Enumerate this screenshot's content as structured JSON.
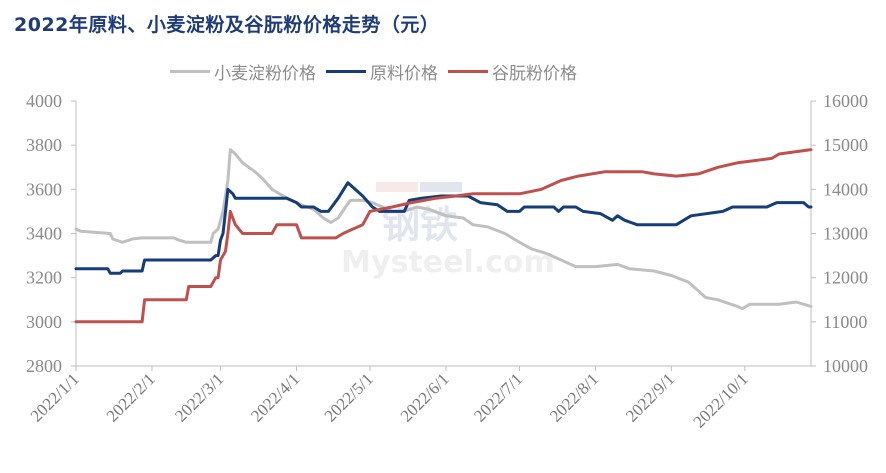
{
  "title": "2022年原料、小麦淀粉及谷朊粉价格走势（元）",
  "legend": [
    {
      "label": "小麦淀粉价格",
      "color": "#c0c0c0"
    },
    {
      "label": "原料价格",
      "color": "#143d7a"
    },
    {
      "label": "谷朊粉价格",
      "color": "#c0504d"
    }
  ],
  "watermark": {
    "top": "钢铁",
    "bottom": "Mysteel.com"
  },
  "chart_data": {
    "type": "line",
    "title": "2022年原料、小麦淀粉及谷朊粉价格走势（元）",
    "xlabel": "",
    "ylabel": "",
    "x_ticks": [
      "2022/1/1",
      "2022/2/1",
      "2022/3/1",
      "2022/4/1",
      "2022/5/1",
      "2022/6/1",
      "2022/7/1",
      "2022/8/1",
      "2022/9/1",
      "2022/10/1"
    ],
    "y_left": {
      "ticks": [
        2800,
        3000,
        3200,
        3400,
        3600,
        3800,
        4000
      ],
      "ylim": [
        2800,
        4000
      ]
    },
    "y_right": {
      "ticks": [
        10000,
        11000,
        12000,
        13000,
        14000,
        15000,
        16000
      ],
      "ylim": [
        10000,
        16000
      ]
    },
    "grid": false,
    "legend_position": "top",
    "series": [
      {
        "name": "小麦淀粉价格",
        "axis": "left",
        "color": "#c0c0c0",
        "points": [
          [
            "2022/1/1",
            3420
          ],
          [
            "2022/1/3",
            3410
          ],
          [
            "2022/1/15",
            3400
          ],
          [
            "2022/1/16",
            3375
          ],
          [
            "2022/1/20",
            3360
          ],
          [
            "2022/1/24",
            3375
          ],
          [
            "2022/1/28",
            3380
          ],
          [
            "2022/2/10",
            3380
          ],
          [
            "2022/2/12",
            3370
          ],
          [
            "2022/2/15",
            3360
          ],
          [
            "2022/2/25",
            3360
          ],
          [
            "2022/2/26",
            3400
          ],
          [
            "2022/2/28",
            3420
          ],
          [
            "2022/3/2",
            3500
          ],
          [
            "2022/3/4",
            3640
          ],
          [
            "2022/3/5",
            3780
          ],
          [
            "2022/3/7",
            3760
          ],
          [
            "2022/3/10",
            3720
          ],
          [
            "2022/3/15",
            3680
          ],
          [
            "2022/3/18",
            3650
          ],
          [
            "2022/3/22",
            3600
          ],
          [
            "2022/3/25",
            3580
          ],
          [
            "2022/3/30",
            3550
          ],
          [
            "2022/4/3",
            3530
          ],
          [
            "2022/4/8",
            3510
          ],
          [
            "2022/4/12",
            3470
          ],
          [
            "2022/4/15",
            3450
          ],
          [
            "2022/4/18",
            3470
          ],
          [
            "2022/4/21",
            3520
          ],
          [
            "2022/4/23",
            3550
          ],
          [
            "2022/4/28",
            3550
          ],
          [
            "2022/5/2",
            3540
          ],
          [
            "2022/5/6",
            3520
          ],
          [
            "2022/5/10",
            3500
          ],
          [
            "2022/5/15",
            3500
          ],
          [
            "2022/5/20",
            3520
          ],
          [
            "2022/5/25",
            3510
          ],
          [
            "2022/6/1",
            3480
          ],
          [
            "2022/6/8",
            3470
          ],
          [
            "2022/6/12",
            3440
          ],
          [
            "2022/6/18",
            3430
          ],
          [
            "2022/6/25",
            3400
          ],
          [
            "2022/7/1",
            3360
          ],
          [
            "2022/7/6",
            3330
          ],
          [
            "2022/7/12",
            3310
          ],
          [
            "2022/7/18",
            3280
          ],
          [
            "2022/7/24",
            3250
          ],
          [
            "2022/8/1",
            3250
          ],
          [
            "2022/8/10",
            3260
          ],
          [
            "2022/8/15",
            3240
          ],
          [
            "2022/8/25",
            3230
          ],
          [
            "2022/9/1",
            3210
          ],
          [
            "2022/9/8",
            3180
          ],
          [
            "2022/9/12",
            3140
          ],
          [
            "2022/9/15",
            3110
          ],
          [
            "2022/9/20",
            3100
          ],
          [
            "2022/9/28",
            3070
          ],
          [
            "2022/9/30",
            3060
          ],
          [
            "2022/10/3",
            3080
          ],
          [
            "2022/10/15",
            3080
          ],
          [
            "2022/10/22",
            3090
          ],
          [
            "2022/10/28",
            3070
          ]
        ]
      },
      {
        "name": "原料价格",
        "axis": "left",
        "color": "#143d7a",
        "points": [
          [
            "2022/1/1",
            3240
          ],
          [
            "2022/1/14",
            3240
          ],
          [
            "2022/1/15",
            3220
          ],
          [
            "2022/1/19",
            3220
          ],
          [
            "2022/1/20",
            3230
          ],
          [
            "2022/1/28",
            3230
          ],
          [
            "2022/1/29",
            3280
          ],
          [
            "2022/2/25",
            3280
          ],
          [
            "2022/2/27",
            3300
          ],
          [
            "2022/2/28",
            3300
          ],
          [
            "2022/3/1",
            3370
          ],
          [
            "2022/3/2",
            3400
          ],
          [
            "2022/3/3",
            3500
          ],
          [
            "2022/3/4",
            3600
          ],
          [
            "2022/3/6",
            3580
          ],
          [
            "2022/3/7",
            3560
          ],
          [
            "2022/3/28",
            3560
          ],
          [
            "2022/4/1",
            3540
          ],
          [
            "2022/4/3",
            3520
          ],
          [
            "2022/4/8",
            3520
          ],
          [
            "2022/4/11",
            3500
          ],
          [
            "2022/4/14",
            3500
          ],
          [
            "2022/4/18",
            3560
          ],
          [
            "2022/4/22",
            3630
          ],
          [
            "2022/4/24",
            3610
          ],
          [
            "2022/4/28",
            3570
          ],
          [
            "2022/5/2",
            3520
          ],
          [
            "2022/5/5",
            3500
          ],
          [
            "2022/5/15",
            3500
          ],
          [
            "2022/5/17",
            3550
          ],
          [
            "2022/5/22",
            3560
          ],
          [
            "2022/5/30",
            3570
          ],
          [
            "2022/6/10",
            3570
          ],
          [
            "2022/6/15",
            3540
          ],
          [
            "2022/6/22",
            3530
          ],
          [
            "2022/6/26",
            3500
          ],
          [
            "2022/7/1",
            3500
          ],
          [
            "2022/7/3",
            3520
          ],
          [
            "2022/7/15",
            3520
          ],
          [
            "2022/7/17",
            3500
          ],
          [
            "2022/7/19",
            3520
          ],
          [
            "2022/7/24",
            3520
          ],
          [
            "2022/7/27",
            3500
          ],
          [
            "2022/8/3",
            3490
          ],
          [
            "2022/8/8",
            3460
          ],
          [
            "2022/8/10",
            3480
          ],
          [
            "2022/8/13",
            3460
          ],
          [
            "2022/8/18",
            3440
          ],
          [
            "2022/9/3",
            3440
          ],
          [
            "2022/9/6",
            3460
          ],
          [
            "2022/9/9",
            3480
          ],
          [
            "2022/9/22",
            3500
          ],
          [
            "2022/9/26",
            3520
          ],
          [
            "2022/10/10",
            3520
          ],
          [
            "2022/10/14",
            3540
          ],
          [
            "2022/10/25",
            3540
          ],
          [
            "2022/10/27",
            3520
          ],
          [
            "2022/10/28",
            3520
          ]
        ]
      },
      {
        "name": "谷朊粉价格",
        "axis": "right",
        "color": "#c0504d",
        "points": [
          [
            "2022/1/1",
            11000
          ],
          [
            "2022/1/28",
            11000
          ],
          [
            "2022/1/29",
            11500
          ],
          [
            "2022/2/15",
            11500
          ],
          [
            "2022/2/16",
            11800
          ],
          [
            "2022/2/25",
            11800
          ],
          [
            "2022/2/27",
            12000
          ],
          [
            "2022/2/28",
            12000
          ],
          [
            "2022/3/1",
            12400
          ],
          [
            "2022/3/3",
            12600
          ],
          [
            "2022/3/4",
            13000
          ],
          [
            "2022/3/5",
            13500
          ],
          [
            "2022/3/7",
            13200
          ],
          [
            "2022/3/10",
            13000
          ],
          [
            "2022/3/22",
            13000
          ],
          [
            "2022/3/24",
            13200
          ],
          [
            "2022/4/1",
            13200
          ],
          [
            "2022/4/3",
            12900
          ],
          [
            "2022/4/17",
            12900
          ],
          [
            "2022/4/20",
            13000
          ],
          [
            "2022/4/24",
            13100
          ],
          [
            "2022/4/28",
            13200
          ],
          [
            "2022/5/1",
            13500
          ],
          [
            "2022/5/10",
            13600
          ],
          [
            "2022/5/18",
            13700
          ],
          [
            "2022/5/28",
            13800
          ],
          [
            "2022/6/5",
            13850
          ],
          [
            "2022/6/12",
            13900
          ],
          [
            "2022/6/20",
            13900
          ],
          [
            "2022/7/1",
            13900
          ],
          [
            "2022/7/10",
            14000
          ],
          [
            "2022/7/18",
            14200
          ],
          [
            "2022/7/25",
            14300
          ],
          [
            "2022/8/5",
            14400
          ],
          [
            "2022/8/20",
            14400
          ],
          [
            "2022/8/25",
            14350
          ],
          [
            "2022/9/3",
            14300
          ],
          [
            "2022/9/12",
            14350
          ],
          [
            "2022/9/20",
            14500
          ],
          [
            "2022/9/28",
            14600
          ],
          [
            "2022/10/5",
            14650
          ],
          [
            "2022/10/12",
            14700
          ],
          [
            "2022/10/15",
            14800
          ],
          [
            "2022/10/28",
            14900
          ]
        ]
      }
    ]
  }
}
